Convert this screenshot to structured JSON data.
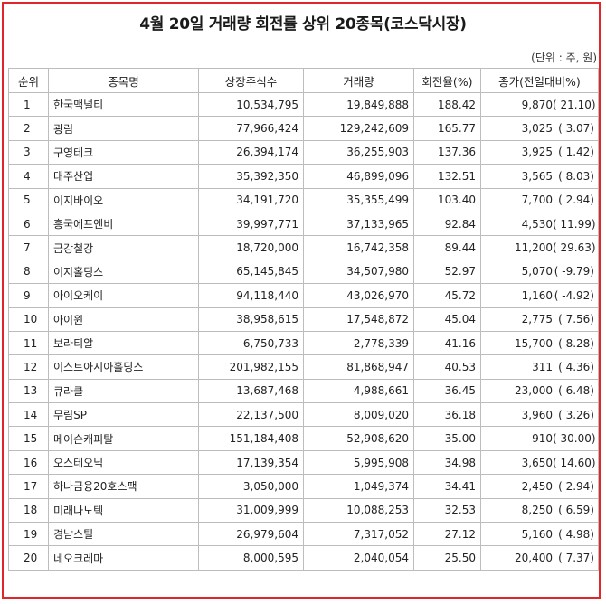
{
  "title": "4월 20일 거래량 회전률 상위 20종목(코스닥시장)",
  "unit_note": "(단위 : 주, 원)",
  "accent_color": "#e0262b",
  "columns": [
    "순위",
    "종목명",
    "상장주식수",
    "거래량",
    "회전율(%)",
    "종가(전일대비%)"
  ],
  "rows": [
    {
      "rank": "1",
      "name": "한국맥널티",
      "listed": "10,534,795",
      "volume": "19,849,888",
      "turnover": "188.42",
      "close": "9,870",
      "change": "(  21.10)"
    },
    {
      "rank": "2",
      "name": "광림",
      "listed": "77,966,424",
      "volume": "129,242,609",
      "turnover": "165.77",
      "close": "3,025",
      "change": "(   3.07)"
    },
    {
      "rank": "3",
      "name": "구영테크",
      "listed": "26,394,174",
      "volume": "36,255,903",
      "turnover": "137.36",
      "close": "3,925",
      "change": "(   1.42)"
    },
    {
      "rank": "4",
      "name": "대주산업",
      "listed": "35,392,350",
      "volume": "46,899,096",
      "turnover": "132.51",
      "close": "3,565",
      "change": "(   8.03)"
    },
    {
      "rank": "5",
      "name": "이지바이오",
      "listed": "34,191,720",
      "volume": "35,355,499",
      "turnover": "103.40",
      "close": "7,700",
      "change": "(   2.94)"
    },
    {
      "rank": "6",
      "name": "흥국에프엔비",
      "listed": "39,997,771",
      "volume": "37,133,965",
      "turnover": "92.84",
      "close": "4,530",
      "change": "(  11.99)"
    },
    {
      "rank": "7",
      "name": "금강철강",
      "listed": "18,720,000",
      "volume": "16,742,358",
      "turnover": "89.44",
      "close": "11,200",
      "change": "(  29.63)"
    },
    {
      "rank": "8",
      "name": "이지홀딩스",
      "listed": "65,145,845",
      "volume": "34,507,980",
      "turnover": "52.97",
      "close": "5,070",
      "change": "(  -9.79)"
    },
    {
      "rank": "9",
      "name": "아이오케이",
      "listed": "94,118,440",
      "volume": "43,026,970",
      "turnover": "45.72",
      "close": "1,160",
      "change": "(  -4.92)"
    },
    {
      "rank": "10",
      "name": "아이윈",
      "listed": "38,958,615",
      "volume": "17,548,872",
      "turnover": "45.04",
      "close": "2,775",
      "change": "(   7.56)"
    },
    {
      "rank": "11",
      "name": "보라티알",
      "listed": "6,750,733",
      "volume": "2,778,339",
      "turnover": "41.16",
      "close": "15,700",
      "change": "(   8.28)"
    },
    {
      "rank": "12",
      "name": "이스트아시아홀딩스",
      "listed": "201,982,155",
      "volume": "81,868,947",
      "turnover": "40.53",
      "close": "311",
      "change": "(   4.36)"
    },
    {
      "rank": "13",
      "name": "큐라클",
      "listed": "13,687,468",
      "volume": "4,988,661",
      "turnover": "36.45",
      "close": "23,000",
      "change": "(   6.48)"
    },
    {
      "rank": "14",
      "name": "무림SP",
      "listed": "22,137,500",
      "volume": "8,009,020",
      "turnover": "36.18",
      "close": "3,960",
      "change": "(   3.26)"
    },
    {
      "rank": "15",
      "name": "메이슨캐피탈",
      "listed": "151,184,408",
      "volume": "52,908,620",
      "turnover": "35.00",
      "close": "910",
      "change": "(  30.00)"
    },
    {
      "rank": "16",
      "name": "오스테오닉",
      "listed": "17,139,354",
      "volume": "5,995,908",
      "turnover": "34.98",
      "close": "3,650",
      "change": "(  14.60)"
    },
    {
      "rank": "17",
      "name": "하나금융20호스팩",
      "listed": "3,050,000",
      "volume": "1,049,374",
      "turnover": "34.41",
      "close": "2,450",
      "change": "(   2.94)"
    },
    {
      "rank": "18",
      "name": "미래나노텍",
      "listed": "31,009,999",
      "volume": "10,088,253",
      "turnover": "32.53",
      "close": "8,250",
      "change": "(   6.59)"
    },
    {
      "rank": "19",
      "name": "경남스틸",
      "listed": "26,979,604",
      "volume": "7,317,052",
      "turnover": "27.12",
      "close": "5,160",
      "change": "(   4.98)"
    },
    {
      "rank": "20",
      "name": "네오크레마",
      "listed": "8,000,595",
      "volume": "2,040,054",
      "turnover": "25.50",
      "close": "20,400",
      "change": "(   7.37)"
    }
  ]
}
